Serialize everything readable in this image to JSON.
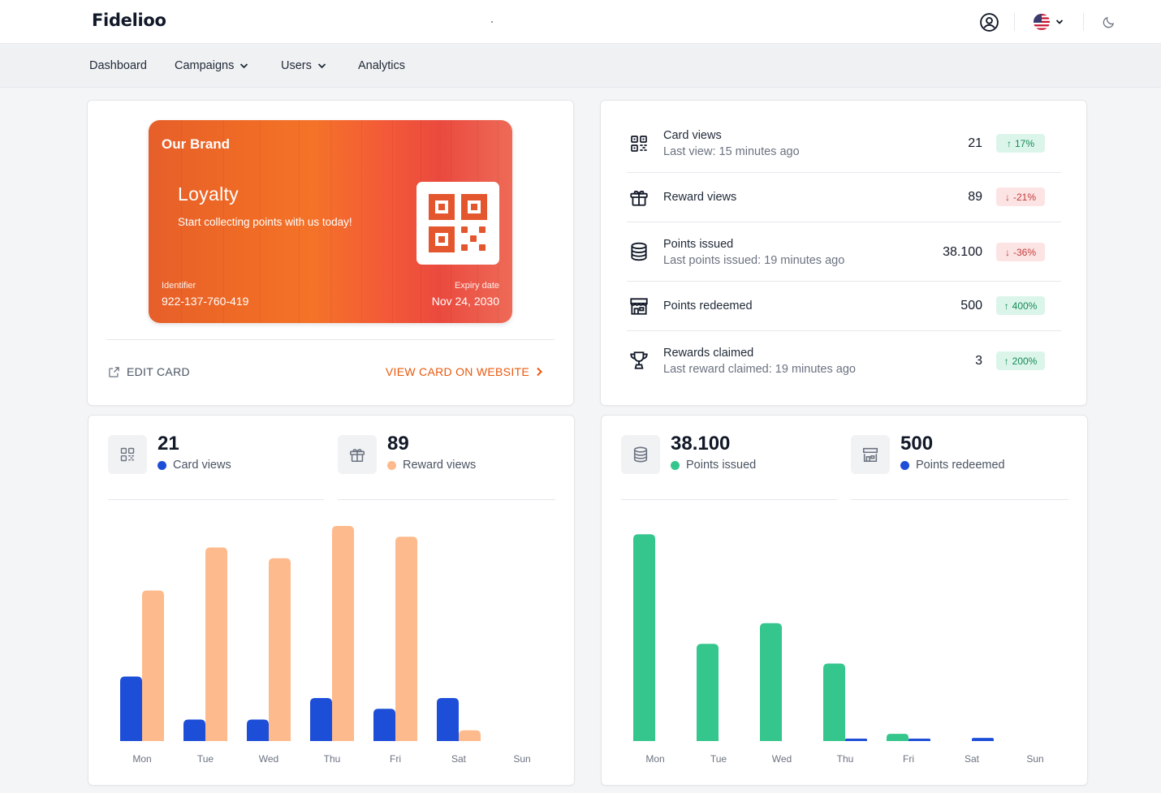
{
  "app": {
    "brand": "Fidelioo"
  },
  "nav": {
    "dashboard": "Dashboard",
    "campaigns": "Campaigns",
    "users": "Users",
    "analytics": "Analytics"
  },
  "loyalty_card": {
    "brand": "Our Brand",
    "title": "Loyalty",
    "subtitle": "Start collecting points with us today!",
    "identifier_label": "Identifier",
    "identifier": "922-137-760-419",
    "expiry_label": "Expiry date",
    "expiry": "Nov 24, 2030",
    "edit_label": "EDIT CARD",
    "view_label": "VIEW CARD ON WEBSITE"
  },
  "stats": [
    {
      "label": "Card views",
      "sub": "Last view: 15 minutes ago",
      "value": "21",
      "change": "17%",
      "trend": "up",
      "icon": "qr-code-icon"
    },
    {
      "label": "Reward views",
      "sub": "",
      "value": "89",
      "change": "-21%",
      "trend": "down",
      "icon": "gift-icon"
    },
    {
      "label": "Points issued",
      "sub": "Last points issued: 19 minutes ago",
      "value": "38.100",
      "change": "-36%",
      "trend": "down",
      "icon": "coins-icon"
    },
    {
      "label": "Points redeemed",
      "sub": "",
      "value": "500",
      "change": "400%",
      "trend": "up",
      "icon": "store-icon"
    },
    {
      "label": "Rewards claimed",
      "sub": "Last reward claimed: 19 minutes ago",
      "value": "3",
      "change": "200%",
      "trend": "up",
      "icon": "trophy-icon"
    }
  ],
  "kpis_left": [
    {
      "value": "21",
      "label": "Card views",
      "color": "#1d4ed8"
    },
    {
      "value": "89",
      "label": "Reward views",
      "color": "#fdba8c"
    }
  ],
  "kpis_right": [
    {
      "value": "38.100",
      "label": "Points issued",
      "color": "#34c68d"
    },
    {
      "value": "500",
      "label": "Points redeemed",
      "color": "#1d4ed8"
    }
  ],
  "chart_data": [
    {
      "type": "bar",
      "categories": [
        "Mon",
        "Tue",
        "Wed",
        "Thu",
        "Fri",
        "Sat",
        "Sun"
      ],
      "series": [
        {
          "name": "Card views",
          "color": "#1d4ed8",
          "values": [
            3,
            1,
            1,
            2,
            1.5,
            2,
            0
          ]
        },
        {
          "name": "Reward views",
          "color": "#fdba8c",
          "values": [
            7,
            9,
            8.5,
            10,
            9.5,
            0.5,
            0
          ]
        }
      ],
      "ylim": [
        0,
        10
      ]
    },
    {
      "type": "bar",
      "categories": [
        "Mon",
        "Tue",
        "Wed",
        "Thu",
        "Fri",
        "Sat",
        "Sun"
      ],
      "series": [
        {
          "name": "Points issued",
          "color": "#34c68d",
          "values": [
            10000,
            4700,
            5700,
            3750,
            350,
            0,
            0
          ]
        },
        {
          "name": "Points redeemed",
          "color": "#1d4ed8",
          "values": [
            0,
            0,
            0,
            100,
            100,
            150,
            0
          ]
        }
      ],
      "ylim": [
        0,
        10400
      ]
    }
  ]
}
